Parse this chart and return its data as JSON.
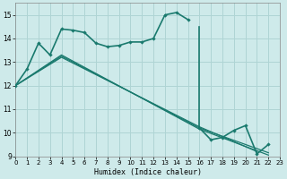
{
  "xlabel": "Humidex (Indice chaleur)",
  "xlim": [
    0,
    23
  ],
  "ylim": [
    9,
    15.5
  ],
  "yticks": [
    9,
    10,
    11,
    12,
    13,
    14,
    15
  ],
  "xticks": [
    0,
    1,
    2,
    3,
    4,
    5,
    6,
    7,
    8,
    9,
    10,
    11,
    12,
    13,
    14,
    15,
    16,
    17,
    18,
    19,
    20,
    21,
    22,
    23
  ],
  "bg_color": "#ceeaea",
  "grid_color": "#afd4d4",
  "line_color": "#1a7a6e",
  "curve1_x": [
    0,
    1,
    2,
    3,
    4,
    5,
    6,
    7,
    8,
    9,
    10,
    11,
    12,
    13,
    14,
    15,
    16,
    17,
    18,
    19,
    20,
    21,
    22
  ],
  "curve1_y": [
    12.0,
    12.7,
    13.8,
    13.3,
    14.4,
    14.35,
    14.25,
    13.8,
    13.65,
    13.7,
    13.85,
    13.85,
    14.0,
    15.0,
    15.1,
    14.8,
    10.2,
    9.7,
    9.8,
    10.1,
    10.3,
    9.1,
    9.5
  ],
  "diag_lines": [
    {
      "x": [
        0,
        4,
        16,
        22
      ],
      "y": [
        12.0,
        13.3,
        10.15,
        9.05
      ]
    },
    {
      "x": [
        0,
        4,
        16,
        22
      ],
      "y": [
        12.0,
        13.25,
        10.2,
        9.15
      ]
    },
    {
      "x": [
        0,
        4,
        16,
        21
      ],
      "y": [
        12.0,
        13.2,
        10.25,
        9.2
      ]
    }
  ]
}
